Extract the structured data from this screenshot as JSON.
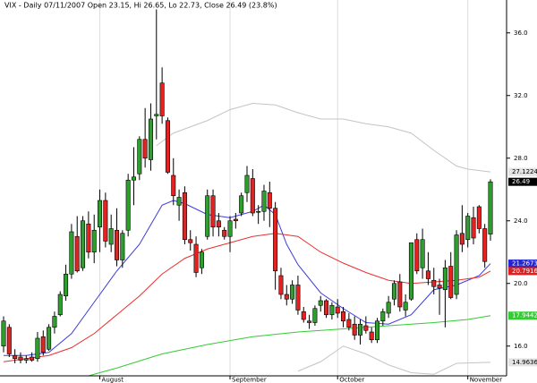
{
  "chart_data": {
    "type": "candlestick",
    "title": "VIX - Daily 07/11/2007 Open 23.15, Hi 26.65, Lo 22.73, Close 26.49 (23.8%)",
    "categories": [
      null,
      null,
      null,
      null,
      null,
      null,
      null,
      null,
      null,
      null,
      null,
      null,
      null,
      null,
      null,
      null,
      null,
      "August",
      null,
      null,
      null,
      null,
      null,
      null,
      null,
      null,
      null,
      null,
      null,
      null,
      null,
      null,
      null,
      null,
      null,
      null,
      null,
      null,
      null,
      null,
      "September",
      null,
      null,
      null,
      null,
      null,
      null,
      null,
      null,
      null,
      null,
      null,
      null,
      null,
      null,
      null,
      null,
      null,
      null,
      "October",
      null,
      null,
      null,
      null,
      null,
      null,
      null,
      null,
      null,
      null,
      null,
      null,
      null,
      null,
      null,
      null,
      null,
      null,
      null,
      null,
      null,
      null,
      "November",
      null,
      null,
      null,
      null
    ],
    "open": [
      16.0,
      17.2,
      15.4,
      15.3,
      15.1,
      15.3,
      15.2,
      16.6,
      15.8,
      17.2,
      18.0,
      19.2,
      20.6,
      23.0,
      21.0,
      23.8,
      22.0,
      23.6,
      25.3,
      22.5,
      23.4,
      21.5,
      23.4,
      26.6,
      27.0,
      29.2,
      27.9,
      30.7,
      32.8,
      30.4,
      26.9,
      25.0,
      25.8,
      22.8,
      22.5,
      21.0,
      23.0,
      25.6,
      24.0,
      23.4,
      23.0,
      24.1,
      24.5,
      25.8,
      26.7,
      24.6,
      24.6,
      25.8,
      24.8,
      20.5,
      19.3,
      19.0,
      19.9,
      18.2,
      17.6,
      17.5,
      18.6,
      18.9,
      18.0,
      18.5,
      18.2,
      17.7,
      17.4,
      16.7,
      17.3,
      16.9,
      16.4,
      17.6,
      18.1,
      19.0,
      20.1,
      18.3,
      19.0,
      22.8,
      21.0,
      20.8,
      20.2,
      19.9,
      19.6,
      21.1,
      19.3,
      23.2,
      22.8,
      24.2,
      24.9,
      23.5,
      23.15
    ],
    "high": [
      17.9,
      17.4,
      15.8,
      15.6,
      15.4,
      15.6,
      16.9,
      17.0,
      17.4,
      18.2,
      19.5,
      21.2,
      23.8,
      24.3,
      24.3,
      24.6,
      24.4,
      26.0,
      25.8,
      24.4,
      24.8,
      23.4,
      27.0,
      28.7,
      29.4,
      31.2,
      31.5,
      37.5,
      33.8,
      30.6,
      28.0,
      26.0,
      26.2,
      23.4,
      23.0,
      22.2,
      26.0,
      26.0,
      24.5,
      23.6,
      24.3,
      24.5,
      25.8,
      27.5,
      27.3,
      25.0,
      26.3,
      26.5,
      25.2,
      21.0,
      19.9,
      20.2,
      20.5,
      18.5,
      18.0,
      18.6,
      19.2,
      19.0,
      18.8,
      19.0,
      18.5,
      18.1,
      17.9,
      17.7,
      17.9,
      17.2,
      17.8,
      18.4,
      19.2,
      20.2,
      20.6,
      19.3,
      22.6,
      23.2,
      23.5,
      22.0,
      21.0,
      20.3,
      21.5,
      22.0,
      23.4,
      25.0,
      24.5,
      24.9,
      25.0,
      23.8,
      26.65
    ],
    "low": [
      15.6,
      15.3,
      14.9,
      14.9,
      14.9,
      15.0,
      15.0,
      15.4,
      15.7,
      16.8,
      17.9,
      18.9,
      20.3,
      20.7,
      20.8,
      21.6,
      21.3,
      22.0,
      22.3,
      22.0,
      21.1,
      21.0,
      23.0,
      25.0,
      26.6,
      27.4,
      27.2,
      29.2,
      30.2,
      27.0,
      25.0,
      24.0,
      22.5,
      22.1,
      20.4,
      20.6,
      22.8,
      23.0,
      23.0,
      22.8,
      22.0,
      23.5,
      24.3,
      25.2,
      24.3,
      23.8,
      24.0,
      23.6,
      19.6,
      19.0,
      18.6,
      18.7,
      18.0,
      17.5,
      17.1,
      17.3,
      18.2,
      17.8,
      17.7,
      17.8,
      17.2,
      17.0,
      16.4,
      16.1,
      16.8,
      16.2,
      16.2,
      17.3,
      17.8,
      18.6,
      18.2,
      17.9,
      18.9,
      20.6,
      20.3,
      19.9,
      19.3,
      18.0,
      17.2,
      19.0,
      19.0,
      22.0,
      22.3,
      22.5,
      23.2,
      21.0,
      22.73
    ],
    "close": [
      17.6,
      15.5,
      15.2,
      15.1,
      15.2,
      15.1,
      16.5,
      15.6,
      17.2,
      17.9,
      19.3,
      20.6,
      23.3,
      20.8,
      24.0,
      22.0,
      23.4,
      25.3,
      22.7,
      23.5,
      21.5,
      23.2,
      26.6,
      26.8,
      29.2,
      28.0,
      30.5,
      30.8,
      30.7,
      27.1,
      25.6,
      25.5,
      22.8,
      22.6,
      20.7,
      22.0,
      25.6,
      23.6,
      23.6,
      23.0,
      24.0,
      24.0,
      25.6,
      26.9,
      24.5,
      24.6,
      25.9,
      24.8,
      20.8,
      19.3,
      19.0,
      19.9,
      18.3,
      17.7,
      17.5,
      18.4,
      18.9,
      18.0,
      18.6,
      18.1,
      17.6,
      17.2,
      16.7,
      17.4,
      17.0,
      16.4,
      17.6,
      18.2,
      18.8,
      20.0,
      18.5,
      18.8,
      22.6,
      20.8,
      22.8,
      20.3,
      19.8,
      19.7,
      21.0,
      19.1,
      23.1,
      22.5,
      24.3,
      22.9,
      23.5,
      21.4,
      26.49
    ],
    "up_color": "#2f9e2f",
    "down_color": "#e32222",
    "close_label_fill": "#000000",
    "close_label_text": "#ffffff",
    "overlays": [
      {
        "color": "#3c3cd8",
        "label_fill": "#2424d0",
        "label_text": "#ffffff",
        "x": [
          0,
          4,
          8,
          12,
          16,
          20,
          24,
          28,
          30,
          32,
          36,
          40,
          44,
          46,
          48,
          50,
          52,
          56,
          60,
          64,
          68,
          72,
          76,
          80,
          84,
          86
        ],
        "values": [
          15.4,
          15.4,
          15.6,
          16.8,
          18.8,
          20.8,
          22.5,
          25.0,
          25.3,
          25.1,
          24.4,
          24.2,
          24.6,
          25.0,
          24.4,
          22.5,
          21.2,
          19.4,
          18.4,
          17.5,
          17.4,
          18.0,
          19.6,
          19.9,
          20.5,
          21.2673
        ]
      },
      {
        "color": "#e83030",
        "label_fill": "#e02020",
        "label_text": "#ffffff",
        "x": [
          0,
          8,
          12,
          16,
          20,
          24,
          28,
          32,
          36,
          40,
          44,
          48,
          52,
          56,
          60,
          64,
          68,
          72,
          76,
          80,
          84,
          86
        ],
        "values": [
          15.0,
          15.4,
          15.9,
          16.8,
          18.0,
          19.2,
          20.6,
          21.6,
          22.2,
          22.6,
          23.0,
          23.2,
          23.0,
          22.0,
          21.3,
          20.7,
          20.2,
          20.0,
          20.1,
          20.2,
          20.4,
          20.7916
        ]
      },
      {
        "color": "#33cc33",
        "label_fill": "#33cc33",
        "label_text": "#ffffff",
        "x": [
          15,
          20,
          28,
          36,
          44,
          52,
          60,
          68,
          76,
          82,
          86
        ],
        "values": [
          14.1,
          14.6,
          15.5,
          16.1,
          16.6,
          16.9,
          17.1,
          17.3,
          17.5,
          17.7,
          17.9442
        ]
      },
      {
        "color": "#c4c4c4",
        "label_fill": "#e4e4e4",
        "label_text": "#000000",
        "x": [
          27,
          30,
          36,
          40,
          44,
          48,
          52,
          56,
          60,
          64,
          68,
          72,
          76,
          80,
          82,
          86
        ],
        "values": [
          28.8,
          29.6,
          30.4,
          31.1,
          31.5,
          31.4,
          30.9,
          30.5,
          30.5,
          30.2,
          30.0,
          29.6,
          28.5,
          27.5,
          27.3,
          27.1224
        ]
      },
      {
        "color": "#c4c4c4",
        "label_fill": "#e4e4e4",
        "label_text": "#000000",
        "x": [
          52,
          56,
          60,
          64,
          68,
          72,
          76,
          80,
          86
        ],
        "values": [
          14.4,
          15.0,
          16.0,
          15.5,
          14.8,
          14.3,
          14.2,
          14.9,
          14.9636
        ]
      }
    ],
    "ylim": [
      14.1,
      38.1
    ],
    "yticks": [
      {
        "value": 16,
        "label": "16.0"
      },
      {
        "value": 20,
        "label": "20.0"
      },
      {
        "value": 24,
        "label": "24.0"
      },
      {
        "value": 28,
        "label": "28.0"
      },
      {
        "value": 32,
        "label": "32.0"
      },
      {
        "value": 36,
        "label": "36.0"
      }
    ]
  }
}
